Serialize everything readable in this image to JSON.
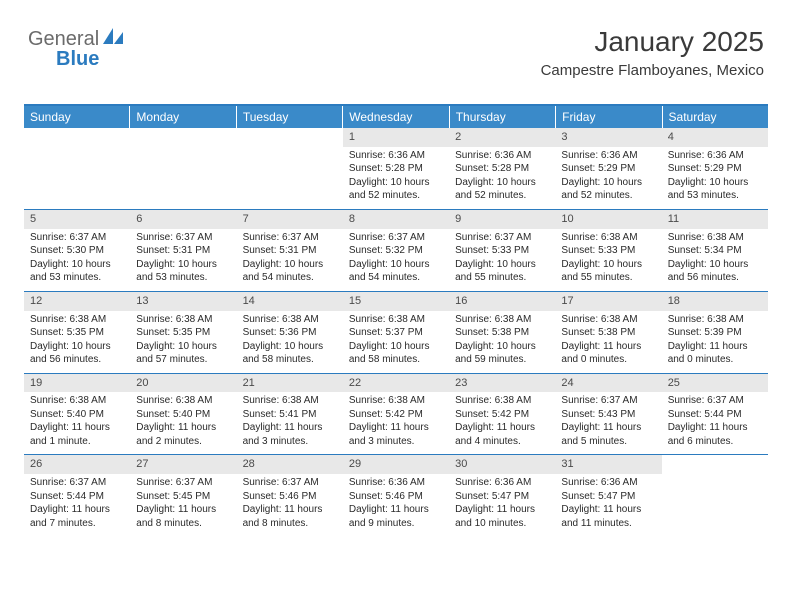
{
  "logo": {
    "textGray": "General",
    "textBlue": "Blue"
  },
  "header": {
    "title": "January 2025",
    "location": "Campestre Flamboyanes, Mexico"
  },
  "colors": {
    "headerBg": "#3a8ac9",
    "headerText": "#ffffff",
    "borderBlue": "#2b7bbf",
    "dayNumBg": "#e8e8e8",
    "textDark": "#2a2a2a"
  },
  "calendar": {
    "dayNames": [
      "Sunday",
      "Monday",
      "Tuesday",
      "Wednesday",
      "Thursday",
      "Friday",
      "Saturday"
    ],
    "weeks": [
      [
        null,
        null,
        null,
        {
          "n": "1",
          "sr": "6:36 AM",
          "ss": "5:28 PM",
          "dl": "10 hours and 52 minutes."
        },
        {
          "n": "2",
          "sr": "6:36 AM",
          "ss": "5:28 PM",
          "dl": "10 hours and 52 minutes."
        },
        {
          "n": "3",
          "sr": "6:36 AM",
          "ss": "5:29 PM",
          "dl": "10 hours and 52 minutes."
        },
        {
          "n": "4",
          "sr": "6:36 AM",
          "ss": "5:29 PM",
          "dl": "10 hours and 53 minutes."
        }
      ],
      [
        {
          "n": "5",
          "sr": "6:37 AM",
          "ss": "5:30 PM",
          "dl": "10 hours and 53 minutes."
        },
        {
          "n": "6",
          "sr": "6:37 AM",
          "ss": "5:31 PM",
          "dl": "10 hours and 53 minutes."
        },
        {
          "n": "7",
          "sr": "6:37 AM",
          "ss": "5:31 PM",
          "dl": "10 hours and 54 minutes."
        },
        {
          "n": "8",
          "sr": "6:37 AM",
          "ss": "5:32 PM",
          "dl": "10 hours and 54 minutes."
        },
        {
          "n": "9",
          "sr": "6:37 AM",
          "ss": "5:33 PM",
          "dl": "10 hours and 55 minutes."
        },
        {
          "n": "10",
          "sr": "6:38 AM",
          "ss": "5:33 PM",
          "dl": "10 hours and 55 minutes."
        },
        {
          "n": "11",
          "sr": "6:38 AM",
          "ss": "5:34 PM",
          "dl": "10 hours and 56 minutes."
        }
      ],
      [
        {
          "n": "12",
          "sr": "6:38 AM",
          "ss": "5:35 PM",
          "dl": "10 hours and 56 minutes."
        },
        {
          "n": "13",
          "sr": "6:38 AM",
          "ss": "5:35 PM",
          "dl": "10 hours and 57 minutes."
        },
        {
          "n": "14",
          "sr": "6:38 AM",
          "ss": "5:36 PM",
          "dl": "10 hours and 58 minutes."
        },
        {
          "n": "15",
          "sr": "6:38 AM",
          "ss": "5:37 PM",
          "dl": "10 hours and 58 minutes."
        },
        {
          "n": "16",
          "sr": "6:38 AM",
          "ss": "5:38 PM",
          "dl": "10 hours and 59 minutes."
        },
        {
          "n": "17",
          "sr": "6:38 AM",
          "ss": "5:38 PM",
          "dl": "11 hours and 0 minutes."
        },
        {
          "n": "18",
          "sr": "6:38 AM",
          "ss": "5:39 PM",
          "dl": "11 hours and 0 minutes."
        }
      ],
      [
        {
          "n": "19",
          "sr": "6:38 AM",
          "ss": "5:40 PM",
          "dl": "11 hours and 1 minute."
        },
        {
          "n": "20",
          "sr": "6:38 AM",
          "ss": "5:40 PM",
          "dl": "11 hours and 2 minutes."
        },
        {
          "n": "21",
          "sr": "6:38 AM",
          "ss": "5:41 PM",
          "dl": "11 hours and 3 minutes."
        },
        {
          "n": "22",
          "sr": "6:38 AM",
          "ss": "5:42 PM",
          "dl": "11 hours and 3 minutes."
        },
        {
          "n": "23",
          "sr": "6:38 AM",
          "ss": "5:42 PM",
          "dl": "11 hours and 4 minutes."
        },
        {
          "n": "24",
          "sr": "6:37 AM",
          "ss": "5:43 PM",
          "dl": "11 hours and 5 minutes."
        },
        {
          "n": "25",
          "sr": "6:37 AM",
          "ss": "5:44 PM",
          "dl": "11 hours and 6 minutes."
        }
      ],
      [
        {
          "n": "26",
          "sr": "6:37 AM",
          "ss": "5:44 PM",
          "dl": "11 hours and 7 minutes."
        },
        {
          "n": "27",
          "sr": "6:37 AM",
          "ss": "5:45 PM",
          "dl": "11 hours and 8 minutes."
        },
        {
          "n": "28",
          "sr": "6:37 AM",
          "ss": "5:46 PM",
          "dl": "11 hours and 8 minutes."
        },
        {
          "n": "29",
          "sr": "6:36 AM",
          "ss": "5:46 PM",
          "dl": "11 hours and 9 minutes."
        },
        {
          "n": "30",
          "sr": "6:36 AM",
          "ss": "5:47 PM",
          "dl": "11 hours and 10 minutes."
        },
        {
          "n": "31",
          "sr": "6:36 AM",
          "ss": "5:47 PM",
          "dl": "11 hours and 11 minutes."
        },
        null
      ]
    ],
    "labels": {
      "sunrise": "Sunrise:",
      "sunset": "Sunset:",
      "daylight": "Daylight:"
    }
  }
}
